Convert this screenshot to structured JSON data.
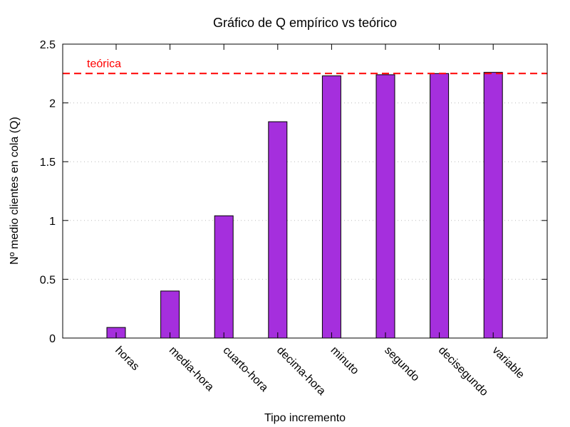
{
  "chart_data": {
    "type": "bar",
    "title": "Gráfico de Q empírico vs teórico",
    "xlabel": "Tipo incremento",
    "ylabel": "Nº medio clientes en cola (Q)",
    "ylim": [
      0,
      2.5
    ],
    "yticks": [
      "0",
      "0.5",
      "1",
      "1.5",
      "2",
      "2.5"
    ],
    "grid": "horizontal dotted",
    "categories": [
      "horas",
      "media-hora",
      "cuarto-hora",
      "decima-hora",
      "minuto",
      "segundo",
      "decisegundo",
      "variable"
    ],
    "values": [
      0.09,
      0.4,
      1.04,
      1.84,
      2.23,
      2.24,
      2.25,
      2.26
    ],
    "bar_color": "#a52fdd",
    "reference_line": {
      "label": "teórica",
      "value": 2.25,
      "color": "#ff0000",
      "style": "dashed"
    }
  }
}
